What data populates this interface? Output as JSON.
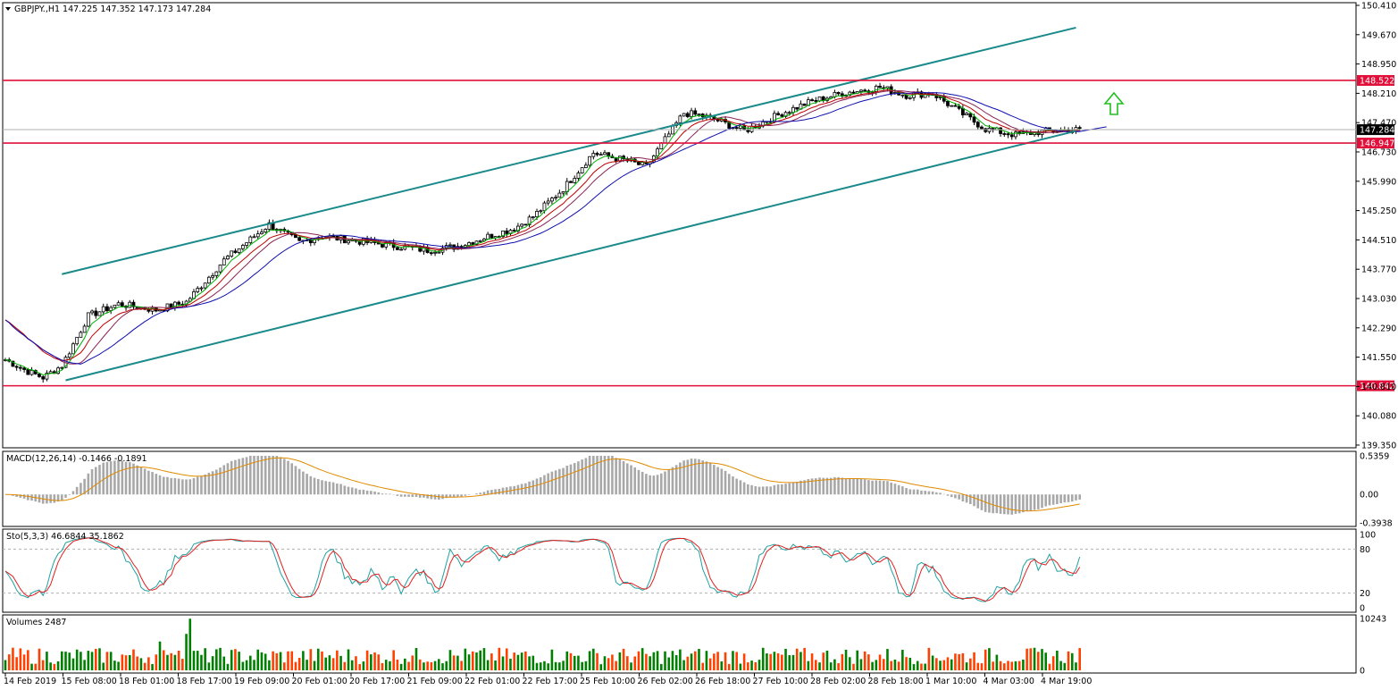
{
  "chart_data": {
    "type": "candlestick",
    "symbol_header": "GBPJPY.,H1  147.225 147.352 147.173 147.284",
    "price_axis": {
      "ylim": [
        139.35,
        150.41
      ],
      "ticks": [
        "150.410",
        "149.670",
        "148.950",
        "148.210",
        "147.470",
        "146.730",
        "145.990",
        "145.250",
        "144.510",
        "143.770",
        "143.030",
        "142.290",
        "141.550",
        "140.810",
        "140.080",
        "139.350"
      ]
    },
    "time_axis": {
      "labels": [
        "14 Feb 2019",
        "15 Feb 08:00",
        "18 Feb 01:00",
        "18 Feb 17:00",
        "19 Feb 09:00",
        "20 Feb 01:00",
        "20 Feb 17:00",
        "21 Feb 09:00",
        "22 Feb 01:00",
        "22 Feb 17:00",
        "25 Feb 10:00",
        "26 Feb 02:00",
        "26 Feb 18:00",
        "27 Feb 10:00",
        "28 Feb 02:00",
        "28 Feb 18:00",
        "1 Mar 10:00",
        "4 Mar 03:00",
        "4 Mar 19:00"
      ]
    },
    "current_price": "147.284",
    "horizontal_levels": [
      {
        "value": 148.522,
        "label": "148.522"
      },
      {
        "value": 146.947,
        "label": "146.947"
      },
      {
        "value": 140.842,
        "label": "140.842"
      }
    ],
    "channel_upper": {
      "x": [
        15,
        284
      ],
      "y": [
        143.65,
        149.85
      ]
    },
    "channel_lower": {
      "x": [
        16,
        284
      ],
      "y": [
        140.98,
        147.25
      ]
    },
    "signal_arrow": "up",
    "price_path_x": [
      0,
      6,
      10,
      15,
      22,
      30,
      40,
      48,
      58,
      70,
      78,
      84,
      96,
      104,
      112,
      120,
      128,
      135,
      140,
      148,
      156,
      165,
      170,
      174,
      180,
      184,
      188,
      196,
      206,
      214,
      222,
      232,
      239,
      246,
      252,
      260,
      268,
      276,
      283
    ],
    "price_path_y": [
      141.5,
      141.2,
      141.05,
      141.35,
      142.6,
      142.9,
      142.75,
      142.95,
      144.0,
      144.9,
      144.45,
      144.6,
      144.45,
      144.35,
      144.25,
      144.35,
      144.6,
      144.8,
      145.1,
      145.8,
      146.7,
      146.5,
      146.35,
      146.9,
      147.7,
      147.65,
      147.55,
      147.25,
      147.7,
      148.0,
      148.2,
      148.35,
      148.15,
      148.2,
      147.8,
      147.3,
      147.15,
      147.25,
      147.28
    ],
    "indicators": {
      "macd": {
        "label": "MACD(12,26,14) -0.1466 -0.1891",
        "ylim": [
          -0.3938,
          0.5359
        ],
        "ticks": [
          "0.5359",
          "0.00",
          "-0.3938"
        ]
      },
      "stochastic": {
        "label": "Sto(5,3,3) 46.6844 35.1862",
        "ylim": [
          0,
          100
        ],
        "ticks": [
          "100",
          "80",
          "20",
          "0"
        ]
      },
      "volumes": {
        "label": "Volumes 2487",
        "ylim": [
          0,
          10243
        ],
        "ticks": [
          "10243",
          "0"
        ]
      }
    },
    "colors": {
      "bull": "#000000",
      "bear": "#000000",
      "level": "#e0103a",
      "channel": "#1a8a8a",
      "ma_fast": "#00b000",
      "ma_mid": "#c00000",
      "ma_mid2": "#8b2252",
      "ma_slow": "#1010b0",
      "macd_hist": "#a8a8a8",
      "macd_signal": "#e08a00",
      "stoch_main": "#20a0a0",
      "stoch_signal": "#e02020",
      "vol_up": "#008000",
      "vol_down": "#ff4000",
      "arrow": "#20c020",
      "price_tag_bg": "#000000"
    }
  }
}
